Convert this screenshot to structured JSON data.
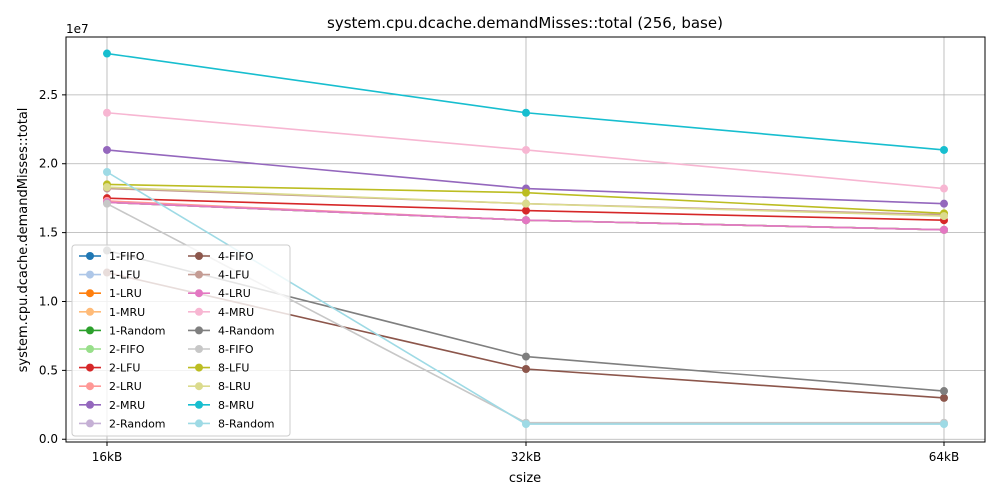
{
  "chart_data": {
    "type": "line",
    "title": "system.cpu.dcache.demandMisses::total (256, base)",
    "xlabel": "csize",
    "ylabel": "system.cpu.dcache.demandMisses::total",
    "y_offset_label": "1e7",
    "categories": [
      "16kB",
      "32kB",
      "64kB"
    ],
    "yticks": [
      0.0,
      0.5,
      1.0,
      1.5,
      2.0,
      2.5
    ],
    "yticklabels": [
      "0.0",
      "0.5",
      "1.0",
      "1.5",
      "2.0",
      "2.5"
    ],
    "ylim": [
      -0.02,
      2.92
    ],
    "grid": true,
    "legend": {
      "placement": "lower-left",
      "columns": 2
    },
    "series": [
      {
        "name": "1-FIFO",
        "color": "#1f77b4",
        "values": [
          1.72,
          1.59,
          1.52
        ]
      },
      {
        "name": "1-LFU",
        "color": "#aec7e8",
        "values": [
          1.72,
          1.59,
          1.52
        ]
      },
      {
        "name": "1-LRU",
        "color": "#ff7f0e",
        "values": [
          1.72,
          1.59,
          1.52
        ]
      },
      {
        "name": "1-MRU",
        "color": "#ffbb78",
        "values": [
          1.72,
          1.59,
          1.52
        ]
      },
      {
        "name": "1-Random",
        "color": "#2ca02c",
        "values": [
          1.72,
          1.59,
          1.52
        ]
      },
      {
        "name": "2-FIFO",
        "color": "#98df8a",
        "values": [
          1.72,
          1.59,
          1.52
        ]
      },
      {
        "name": "2-LFU",
        "color": "#d62728",
        "values": [
          1.75,
          1.66,
          1.59
        ]
      },
      {
        "name": "2-LRU",
        "color": "#ff9896",
        "values": [
          1.73,
          1.59,
          1.52
        ]
      },
      {
        "name": "2-MRU",
        "color": "#9467bd",
        "values": [
          2.1,
          1.82,
          1.71
        ]
      },
      {
        "name": "2-Random",
        "color": "#c5b0d5",
        "values": [
          1.72,
          1.59,
          1.52
        ]
      },
      {
        "name": "4-FIFO",
        "color": "#8c564b",
        "values": [
          1.21,
          0.51,
          0.3
        ]
      },
      {
        "name": "4-LFU",
        "color": "#c49c94",
        "values": [
          1.82,
          1.71,
          1.63
        ]
      },
      {
        "name": "4-LRU",
        "color": "#e377c2",
        "values": [
          1.72,
          1.59,
          1.52
        ]
      },
      {
        "name": "4-MRU",
        "color": "#f7b6d2",
        "values": [
          2.37,
          2.1,
          1.82
        ]
      },
      {
        "name": "4-Random",
        "color": "#7f7f7f",
        "values": [
          1.37,
          0.6,
          0.35
        ]
      },
      {
        "name": "8-FIFO",
        "color": "#c7c7c7",
        "values": [
          1.71,
          0.12,
          0.12
        ]
      },
      {
        "name": "8-LFU",
        "color": "#bcbd22",
        "values": [
          1.85,
          1.79,
          1.64
        ]
      },
      {
        "name": "8-LRU",
        "color": "#dbdb8d",
        "values": [
          1.83,
          1.71,
          1.62
        ]
      },
      {
        "name": "8-MRU",
        "color": "#17becf",
        "values": [
          2.8,
          2.37,
          2.1
        ]
      },
      {
        "name": "8-Random",
        "color": "#9edae5",
        "values": [
          1.94,
          0.11,
          0.11
        ]
      }
    ]
  }
}
